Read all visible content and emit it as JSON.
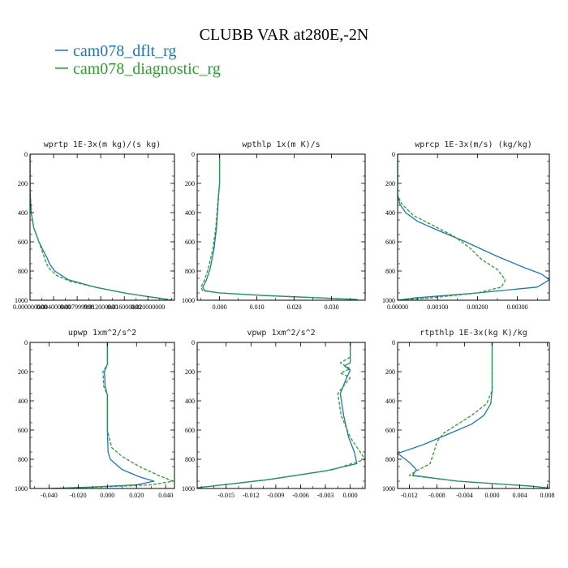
{
  "figure": {
    "title": "CLUBB VAR at280E,-2N",
    "legend": [
      {
        "label": "cam078_dflt_rg",
        "color": "#1f77b4",
        "dash": "solid"
      },
      {
        "label": "cam078_diagnostic_rg",
        "color": "#2ca02c",
        "dash": "dashed"
      }
    ]
  },
  "chart_data": [
    {
      "type": "line",
      "title": "wprtp  1E-3x(m kg)/(s kg)",
      "xlim": [
        0,
        0.0245
      ],
      "ylim": [
        1000,
        0
      ],
      "xticks": [
        0.0,
        0.004,
        0.008,
        0.012,
        0.016,
        0.02
      ],
      "xtick_labels": [
        "0.000000000",
        "0.004000000",
        "0.007999998",
        "0.012000000",
        "0.016000000",
        "0.020000000"
      ],
      "yticks": [
        0,
        200,
        400,
        600,
        800,
        1000
      ],
      "series": [
        {
          "name": "cam078_dflt_rg",
          "x": [
            0.0,
            0.0,
            0.0002,
            0.0006,
            0.0015,
            0.0025,
            0.003,
            0.0033,
            0.0042,
            0.0065,
            0.011,
            0.016,
            0.02,
            0.0225,
            0.0235
          ],
          "y": [
            0,
            250,
            400,
            500,
            600,
            680,
            720,
            750,
            800,
            860,
            910,
            950,
            975,
            990,
            997
          ]
        },
        {
          "name": "cam078_diagnostic_rg",
          "x": [
            0.0,
            0.0,
            0.0002,
            0.0006,
            0.0015,
            0.0022,
            0.0027,
            0.0032,
            0.0045,
            0.0068,
            0.011,
            0.016,
            0.02,
            0.0228,
            0.024
          ],
          "y": [
            0,
            250,
            400,
            500,
            600,
            680,
            740,
            780,
            830,
            870,
            910,
            950,
            975,
            990,
            997
          ]
        }
      ]
    },
    {
      "type": "line",
      "title": "wpthlp  1x(m K)/s",
      "xlim": [
        -0.006,
        0.039
      ],
      "ylim": [
        1000,
        0
      ],
      "xticks": [
        0.0,
        0.01,
        0.02,
        0.03
      ],
      "xtick_labels": [
        "0.000",
        "0.010",
        "0.020",
        "0.030"
      ],
      "yticks": [
        0,
        200,
        400,
        600,
        800,
        1000
      ],
      "series": [
        {
          "name": "cam078_dflt_rg",
          "x": [
            0.0,
            0.0,
            -0.0003,
            -0.0008,
            -0.0015,
            -0.0025,
            -0.0035,
            -0.0045,
            -0.004,
            0.0,
            0.012,
            0.028,
            0.037
          ],
          "y": [
            0,
            200,
            300,
            500,
            650,
            780,
            860,
            910,
            935,
            950,
            968,
            985,
            995
          ]
        },
        {
          "name": "cam078_diagnostic_rg",
          "x": [
            0.0,
            0.0,
            -0.0004,
            -0.001,
            -0.0018,
            -0.003,
            -0.004,
            -0.005,
            -0.0045,
            0.0,
            0.012,
            0.028,
            0.037
          ],
          "y": [
            0,
            200,
            300,
            500,
            650,
            780,
            860,
            910,
            935,
            950,
            968,
            985,
            995
          ]
        }
      ]
    },
    {
      "type": "line",
      "title": "wprcp  1E-3x(m/s) (kg/kg)",
      "xlim": [
        0,
        0.0038
      ],
      "ylim": [
        1000,
        0
      ],
      "xticks": [
        0.0,
        0.001,
        0.002,
        0.003
      ],
      "xtick_labels": [
        "0.00000",
        "0.00100",
        "0.00200",
        "0.00300"
      ],
      "yticks": [
        0,
        200,
        400,
        600,
        800,
        1000
      ],
      "series": [
        {
          "name": "cam078_dflt_rg",
          "x": [
            0.0,
            0.0,
            5e-05,
            0.0002,
            0.0005,
            0.001,
            0.0017,
            0.0025,
            0.0032,
            0.0036,
            0.0038,
            0.0035,
            0.002,
            0.0004,
            0.0
          ],
          "y": [
            0,
            280,
            340,
            400,
            460,
            520,
            600,
            700,
            780,
            820,
            860,
            910,
            950,
            985,
            1000
          ]
        },
        {
          "name": "cam078_diagnostic_rg",
          "x": [
            0.0,
            0.0,
            0.0001,
            0.0004,
            0.0009,
            0.0014,
            0.0018,
            0.0021,
            0.0025,
            0.0027,
            0.0026,
            0.002,
            0.0008,
            0.0
          ],
          "y": [
            0,
            280,
            340,
            420,
            490,
            560,
            640,
            720,
            790,
            860,
            910,
            950,
            985,
            1000
          ]
        }
      ]
    },
    {
      "type": "line",
      "title": "upwp  1xm^2/s^2",
      "xlim": [
        -0.053,
        0.046
      ],
      "ylim": [
        1000,
        0
      ],
      "xticks": [
        -0.04,
        -0.02,
        0.0,
        0.02,
        0.04
      ],
      "xtick_labels": [
        "-0.040",
        "-0.020",
        "0.000",
        "0.020",
        "0.040"
      ],
      "yticks": [
        0,
        200,
        400,
        600,
        800,
        1000
      ],
      "series": [
        {
          "name": "cam078_dflt_rg",
          "x": [
            0.0,
            0.0,
            -0.002,
            -0.0015,
            0.0,
            0.0,
            0.0005,
            0.002,
            0.01,
            0.022,
            0.032,
            0.02,
            -0.01,
            -0.04
          ],
          "y": [
            0,
            150,
            200,
            300,
            360,
            600,
            750,
            800,
            870,
            920,
            950,
            975,
            990,
            1000
          ]
        },
        {
          "name": "cam078_diagnostic_rg",
          "x": [
            0.0,
            0.0,
            -0.003,
            -0.0025,
            0.0,
            0.0,
            0.003,
            0.01,
            0.022,
            0.035,
            0.045,
            0.03,
            -0.005,
            -0.04
          ],
          "y": [
            0,
            150,
            200,
            300,
            360,
            600,
            720,
            780,
            850,
            910,
            950,
            975,
            990,
            1000
          ]
        }
      ]
    },
    {
      "type": "line",
      "title": "vpwp  1xm^2/s^2",
      "xlim": [
        -0.0185,
        0.0018
      ],
      "ylim": [
        1000,
        0
      ],
      "xticks": [
        -0.015,
        -0.012,
        -0.009,
        -0.006,
        -0.003,
        0.0
      ],
      "xtick_labels": [
        "-0.015",
        "-0.012",
        "-0.009",
        "-0.006",
        "-0.003",
        "0.000"
      ],
      "yticks": [
        0,
        200,
        400,
        600,
        800,
        1000
      ],
      "series": [
        {
          "name": "cam078_dflt_rg",
          "x": [
            0.0,
            0.0,
            0.0,
            -0.0007,
            0.0,
            -0.0005,
            -0.0012,
            -0.0008,
            -0.0002,
            0.0005,
            0.0008,
            -0.003,
            -0.01,
            -0.0185
          ],
          "y": [
            0,
            100,
            140,
            160,
            190,
            250,
            350,
            500,
            650,
            750,
            830,
            880,
            940,
            995
          ]
        },
        {
          "name": "cam078_diagnostic_rg",
          "x": [
            0.0,
            0.0,
            -0.0012,
            0.0,
            -0.0012,
            0.0,
            -0.0015,
            -0.0011,
            0.0,
            0.0012,
            0.0018,
            -0.002,
            -0.01,
            -0.0185
          ],
          "y": [
            0,
            100,
            140,
            180,
            210,
            240,
            350,
            500,
            650,
            750,
            800,
            870,
            940,
            995
          ]
        }
      ]
    },
    {
      "type": "line",
      "title": "rtpthlp  1E-3x(kg K)/kg",
      "xlim": [
        -0.0137,
        0.0083
      ],
      "ylim": [
        1000,
        0
      ],
      "xticks": [
        -0.012,
        -0.008,
        -0.004,
        0.0,
        0.004,
        0.008
      ],
      "xtick_labels": [
        "-0.012",
        "-0.008",
        "-0.004",
        "0.000",
        "0.004",
        "0.008"
      ],
      "yticks": [
        0,
        200,
        400,
        600,
        800,
        1000
      ],
      "series": [
        {
          "name": "cam078_dflt_rg",
          "x": [
            0.0,
            0.0,
            -0.0002,
            -0.0012,
            -0.003,
            -0.006,
            -0.01,
            -0.0137,
            -0.012,
            -0.011,
            -0.0115,
            -0.005,
            0.006,
            0.0083
          ],
          "y": [
            0,
            330,
            420,
            500,
            560,
            620,
            700,
            760,
            820,
            870,
            910,
            950,
            985,
            998
          ]
        },
        {
          "name": "cam078_diagnostic_rg",
          "x": [
            0.0,
            0.0,
            -0.0008,
            -0.003,
            -0.005,
            -0.007,
            -0.008,
            -0.0085,
            -0.009,
            -0.011,
            -0.012,
            -0.005,
            0.006,
            0.0083
          ],
          "y": [
            0,
            330,
            420,
            500,
            560,
            620,
            680,
            760,
            830,
            880,
            910,
            950,
            985,
            998
          ]
        }
      ]
    }
  ]
}
